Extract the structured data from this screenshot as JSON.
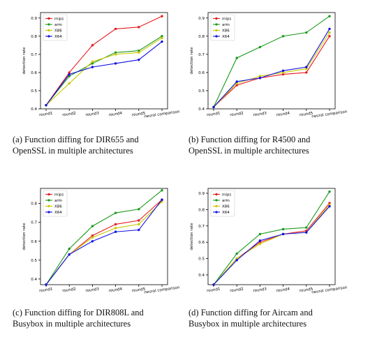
{
  "chart_data": [
    {
      "type": "line",
      "categories": [
        "round1",
        "round2",
        "round3",
        "round4",
        "round5",
        "neural comparison"
      ],
      "ylabel": "detection rate",
      "ylim": [
        0.4,
        0.93
      ],
      "yticks": [
        0.4,
        0.5,
        0.6,
        0.7,
        0.8,
        0.9
      ],
      "legend": "top-left",
      "caption": [
        "(a) Function diffing for DIR655 and",
        "OpenSSL in multiple architectures"
      ],
      "series": [
        {
          "name": "mips",
          "color": "#e8191c",
          "values": [
            0.42,
            0.6,
            0.75,
            0.84,
            0.85,
            0.91
          ]
        },
        {
          "name": "arm",
          "color": "#1a9a1a",
          "values": [
            0.42,
            0.58,
            0.65,
            0.71,
            0.72,
            0.8
          ]
        },
        {
          "name": "X86",
          "color": "#c8c800",
          "values": [
            0.42,
            0.54,
            0.66,
            0.7,
            0.71,
            0.79
          ]
        },
        {
          "name": "X64",
          "color": "#1010e0",
          "values": [
            0.42,
            0.59,
            0.63,
            0.65,
            0.67,
            0.77
          ]
        }
      ]
    },
    {
      "type": "line",
      "categories": [
        "round1",
        "round2",
        "round3",
        "round4",
        "round5",
        "neural comparison"
      ],
      "ylabel": "detection rate",
      "ylim": [
        0.4,
        0.93
      ],
      "yticks": [
        0.4,
        0.5,
        0.6,
        0.7,
        0.8,
        0.9
      ],
      "legend": "top-left",
      "caption": [
        "(b) Function diffing for R4500 and",
        "OpenSSL in multiple architectures"
      ],
      "series": [
        {
          "name": "mips",
          "color": "#e8191c",
          "values": [
            0.41,
            0.53,
            0.57,
            0.59,
            0.6,
            0.8
          ]
        },
        {
          "name": "arm",
          "color": "#1a9a1a",
          "values": [
            0.41,
            0.68,
            0.74,
            0.8,
            0.82,
            0.91
          ]
        },
        {
          "name": "X86",
          "color": "#c8c800",
          "values": [
            0.41,
            0.54,
            0.58,
            0.6,
            0.62,
            0.82
          ]
        },
        {
          "name": "X64",
          "color": "#1010e0",
          "values": [
            0.41,
            0.55,
            0.57,
            0.61,
            0.63,
            0.84
          ]
        }
      ]
    },
    {
      "type": "line",
      "categories": [
        "round1",
        "round2",
        "round3",
        "round4",
        "round5",
        "neural comparison"
      ],
      "ylabel": "detection rate",
      "ylim": [
        0.37,
        0.88
      ],
      "yticks": [
        0.4,
        0.5,
        0.6,
        0.7,
        0.8
      ],
      "legend": "top-left",
      "caption": [
        "(c) Function diffing for DIR808L and",
        "Busybox in multiple architectures"
      ],
      "series": [
        {
          "name": "mips",
          "color": "#e8191c",
          "values": [
            0.37,
            0.53,
            0.63,
            0.69,
            0.71,
            0.82
          ]
        },
        {
          "name": "arm",
          "color": "#1a9a1a",
          "values": [
            0.37,
            0.56,
            0.68,
            0.75,
            0.77,
            0.87
          ]
        },
        {
          "name": "X86",
          "color": "#c8c800",
          "values": [
            0.37,
            0.53,
            0.62,
            0.67,
            0.69,
            0.81
          ]
        },
        {
          "name": "X64",
          "color": "#1010e0",
          "values": [
            0.37,
            0.53,
            0.6,
            0.65,
            0.66,
            0.82
          ]
        }
      ]
    },
    {
      "type": "line",
      "categories": [
        "round1",
        "round2",
        "round3",
        "round4",
        "round5",
        "neural comparison"
      ],
      "ylabel": "detection rate",
      "ylim": [
        0.34,
        0.93
      ],
      "yticks": [
        0.4,
        0.5,
        0.6,
        0.7,
        0.8,
        0.9
      ],
      "legend": "top-left",
      "caption": [
        "(d) Function diffing for Aircam and",
        "Busybox in multiple architectures"
      ],
      "series": [
        {
          "name": "mips",
          "color": "#e8191c",
          "values": [
            0.34,
            0.5,
            0.6,
            0.65,
            0.67,
            0.84
          ]
        },
        {
          "name": "arm",
          "color": "#1a9a1a",
          "values": [
            0.34,
            0.53,
            0.65,
            0.68,
            0.69,
            0.91
          ]
        },
        {
          "name": "X86",
          "color": "#c8c800",
          "values": [
            0.34,
            0.5,
            0.59,
            0.65,
            0.66,
            0.83
          ]
        },
        {
          "name": "X64",
          "color": "#1010e0",
          "values": [
            0.34,
            0.49,
            0.61,
            0.65,
            0.66,
            0.82
          ]
        }
      ]
    }
  ]
}
